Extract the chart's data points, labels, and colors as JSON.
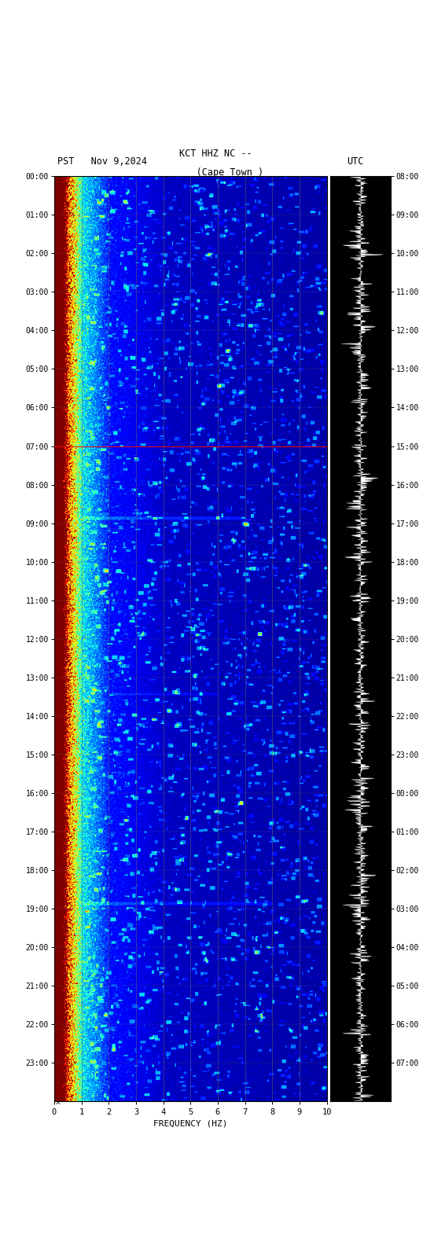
{
  "title_left": "PST   Nov 9,2024",
  "title_center_1": "KCT HHZ NC --",
  "title_center_2": "     (Cape Town )",
  "title_right": "UTC",
  "xlabel": "FREQUENCY (HZ)",
  "freq_min": 0,
  "freq_max": 10,
  "freq_ticks": [
    0,
    1,
    2,
    3,
    4,
    5,
    6,
    7,
    8,
    9,
    10
  ],
  "left_times": [
    "00:00",
    "01:00",
    "02:00",
    "03:00",
    "04:00",
    "05:00",
    "06:00",
    "07:00",
    "08:00",
    "09:00",
    "10:00",
    "11:00",
    "12:00",
    "13:00",
    "14:00",
    "15:00",
    "16:00",
    "17:00",
    "18:00",
    "19:00",
    "20:00",
    "21:00",
    "22:00",
    "23:00"
  ],
  "right_times": [
    "08:00",
    "09:00",
    "10:00",
    "11:00",
    "12:00",
    "13:00",
    "14:00",
    "15:00",
    "16:00",
    "17:00",
    "18:00",
    "19:00",
    "20:00",
    "21:00",
    "22:00",
    "23:00",
    "00:00",
    "01:00",
    "02:00",
    "03:00",
    "04:00",
    "05:00",
    "06:00",
    "07:00"
  ],
  "red_line_hour": 7,
  "figsize": [
    5.52,
    15.84
  ],
  "dpi": 100,
  "seed": 12345
}
